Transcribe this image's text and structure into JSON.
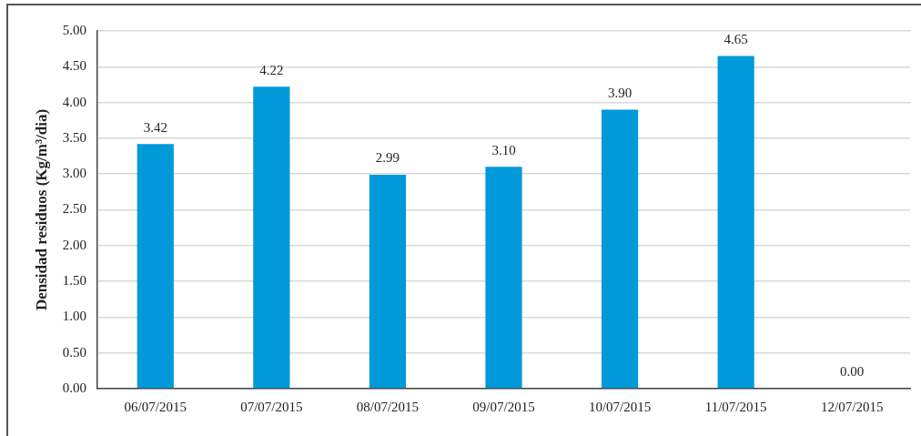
{
  "chart_data": {
    "type": "bar",
    "ylabel": "Densidad residuos (Kg/m³/dia)",
    "categories": [
      "06/07/2015",
      "07/07/2015",
      "08/07/2015",
      "09/07/2015",
      "10/07/2015",
      "11/07/2015",
      "12/07/2015"
    ],
    "values": [
      3.42,
      4.22,
      2.99,
      3.1,
      3.9,
      4.65,
      0
    ],
    "value_labels": [
      "3.42",
      "4.22",
      "2.99",
      "3.10",
      "3.90",
      "4.65",
      "0.00"
    ],
    "color": "#0099d9",
    "ylim": [
      0,
      5
    ],
    "yticks": [
      {
        "value": 0,
        "label": "0.00"
      },
      {
        "value": 0.5,
        "label": "0.50"
      },
      {
        "value": 1,
        "label": "1.00"
      },
      {
        "value": 1.5,
        "label": "1.50"
      },
      {
        "value": 2,
        "label": "2.00"
      },
      {
        "value": 2.5,
        "label": "2.50"
      },
      {
        "value": 3,
        "label": "3.00"
      },
      {
        "value": 3.5,
        "label": "3.50"
      },
      {
        "value": 4,
        "label": "4.00"
      },
      {
        "value": 4.5,
        "label": "4.50"
      },
      {
        "value": 5,
        "label": "5.00"
      }
    ],
    "grid": "y"
  }
}
